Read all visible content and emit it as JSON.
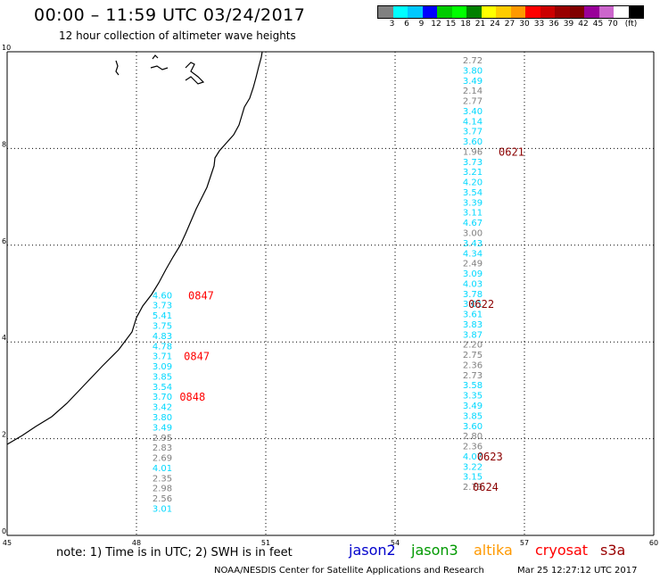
{
  "header": {
    "title": "00:00 – 11:59 UTC 03/24/2017",
    "subtitle": "12 hour collection of altimeter wave heights"
  },
  "colorbar": {
    "colors": [
      "#808080",
      "#00ffff",
      "#00c8ff",
      "#0000ff",
      "#00cc00",
      "#00ff00",
      "#008000",
      "#ffff00",
      "#ffcc00",
      "#ff9900",
      "#ff0000",
      "#cc0000",
      "#990000",
      "#800000",
      "#990099",
      "#cc66cc",
      "#ffffff",
      "#000000"
    ],
    "labels": [
      "3",
      "6",
      "9",
      "12",
      "15",
      "18",
      "21",
      "24",
      "27",
      "30",
      "33",
      "36",
      "39",
      "42",
      "45",
      "70",
      "(ft)"
    ]
  },
  "axes": {
    "x_ticks": [
      "45",
      "48",
      "51",
      "54",
      "57",
      "60"
    ],
    "y_ticks": [
      "0",
      "2",
      "4",
      "6",
      "8",
      "10"
    ],
    "xlim": [
      45,
      60
    ],
    "ylim": [
      0,
      10
    ]
  },
  "tracks": [
    {
      "lon": 48.6,
      "values": [
        {
          "lat": 4.9,
          "v": "4.60",
          "c": "cyan"
        },
        {
          "lat": 4.7,
          "v": "3.73",
          "c": "cyan"
        },
        {
          "lat": 4.48,
          "v": "5.41",
          "c": "cyan"
        },
        {
          "lat": 4.27,
          "v": "3.75",
          "c": "cyan"
        },
        {
          "lat": 4.06,
          "v": "4.83",
          "c": "cyan"
        },
        {
          "lat": 3.85,
          "v": "4.78",
          "c": "cyan"
        },
        {
          "lat": 3.64,
          "v": "3.71",
          "c": "cyan"
        },
        {
          "lat": 3.43,
          "v": "3.09",
          "c": "cyan"
        },
        {
          "lat": 3.22,
          "v": "3.85",
          "c": "cyan"
        },
        {
          "lat": 3.01,
          "v": "3.54",
          "c": "cyan"
        },
        {
          "lat": 2.8,
          "v": "3.70",
          "c": "cyan"
        },
        {
          "lat": 2.59,
          "v": "3.42",
          "c": "cyan"
        },
        {
          "lat": 2.38,
          "v": "3.80",
          "c": "cyan"
        },
        {
          "lat": 2.17,
          "v": "3.49",
          "c": "cyan"
        },
        {
          "lat": 1.96,
          "v": "2.95",
          "c": "gray"
        },
        {
          "lat": 1.75,
          "v": "2.83",
          "c": "gray"
        },
        {
          "lat": 1.54,
          "v": "2.69",
          "c": "gray"
        },
        {
          "lat": 1.33,
          "v": "4.01",
          "c": "cyan"
        },
        {
          "lat": 1.12,
          "v": "2.35",
          "c": "gray"
        },
        {
          "lat": 0.91,
          "v": "2.98",
          "c": "gray"
        },
        {
          "lat": 0.7,
          "v": "2.56",
          "c": "gray"
        },
        {
          "lat": 0.49,
          "v": "3.01",
          "c": "cyan"
        }
      ]
    },
    {
      "lon": 55.8,
      "values": [
        {
          "lat": 9.76,
          "v": "2.72",
          "c": "gray"
        },
        {
          "lat": 9.55,
          "v": "3.80",
          "c": "cyan"
        },
        {
          "lat": 9.34,
          "v": "3.49",
          "c": "cyan"
        },
        {
          "lat": 9.13,
          "v": "2.14",
          "c": "gray"
        },
        {
          "lat": 8.92,
          "v": "2.77",
          "c": "gray"
        },
        {
          "lat": 8.71,
          "v": "3.40",
          "c": "cyan"
        },
        {
          "lat": 8.5,
          "v": "4.14",
          "c": "cyan"
        },
        {
          "lat": 8.29,
          "v": "3.77",
          "c": "cyan"
        },
        {
          "lat": 8.08,
          "v": "3.60",
          "c": "cyan"
        },
        {
          "lat": 7.87,
          "v": "1.96",
          "c": "gray"
        },
        {
          "lat": 7.66,
          "v": "3.73",
          "c": "cyan"
        },
        {
          "lat": 7.45,
          "v": "3.21",
          "c": "cyan"
        },
        {
          "lat": 7.24,
          "v": "4.20",
          "c": "cyan"
        },
        {
          "lat": 7.03,
          "v": "3.54",
          "c": "cyan"
        },
        {
          "lat": 6.82,
          "v": "3.39",
          "c": "cyan"
        },
        {
          "lat": 6.61,
          "v": "3.11",
          "c": "cyan"
        },
        {
          "lat": 6.4,
          "v": "4.67",
          "c": "cyan"
        },
        {
          "lat": 6.19,
          "v": "3.00",
          "c": "gray"
        },
        {
          "lat": 5.98,
          "v": "3.43",
          "c": "cyan"
        },
        {
          "lat": 5.77,
          "v": "4.34",
          "c": "cyan"
        },
        {
          "lat": 5.56,
          "v": "2.49",
          "c": "gray"
        },
        {
          "lat": 5.35,
          "v": "3.09",
          "c": "cyan"
        },
        {
          "lat": 5.14,
          "v": "4.03",
          "c": "cyan"
        },
        {
          "lat": 4.93,
          "v": "3.78",
          "c": "cyan"
        },
        {
          "lat": 4.72,
          "v": "3.01",
          "c": "cyan"
        },
        {
          "lat": 4.51,
          "v": "3.61",
          "c": "cyan"
        },
        {
          "lat": 4.3,
          "v": "3.83",
          "c": "cyan"
        },
        {
          "lat": 4.09,
          "v": "3.87",
          "c": "cyan"
        },
        {
          "lat": 3.88,
          "v": "2.20",
          "c": "gray"
        },
        {
          "lat": 3.67,
          "v": "2.75",
          "c": "gray"
        },
        {
          "lat": 3.46,
          "v": "2.36",
          "c": "gray"
        },
        {
          "lat": 3.25,
          "v": "2.73",
          "c": "gray"
        },
        {
          "lat": 3.04,
          "v": "3.58",
          "c": "cyan"
        },
        {
          "lat": 2.83,
          "v": "3.35",
          "c": "cyan"
        },
        {
          "lat": 2.62,
          "v": "3.49",
          "c": "cyan"
        },
        {
          "lat": 2.41,
          "v": "3.85",
          "c": "cyan"
        },
        {
          "lat": 2.2,
          "v": "3.60",
          "c": "cyan"
        },
        {
          "lat": 1.99,
          "v": "2.80",
          "c": "gray"
        },
        {
          "lat": 1.78,
          "v": "2.36",
          "c": "gray"
        },
        {
          "lat": 1.57,
          "v": "4.07",
          "c": "cyan"
        },
        {
          "lat": 1.36,
          "v": "3.22",
          "c": "cyan"
        },
        {
          "lat": 1.15,
          "v": "3.15",
          "c": "cyan"
        },
        {
          "lat": 0.94,
          "v": "2.73",
          "c": "gray"
        }
      ]
    }
  ],
  "time_labels": [
    {
      "lon": 49.2,
      "lat": 4.9,
      "t": "0847",
      "c": "red"
    },
    {
      "lon": 49.1,
      "lat": 3.64,
      "t": "0847",
      "c": "red"
    },
    {
      "lon": 49.0,
      "lat": 2.8,
      "t": "0848",
      "c": "red"
    },
    {
      "lon": 56.4,
      "lat": 7.87,
      "t": "0621",
      "c": "darkred"
    },
    {
      "lon": 55.7,
      "lat": 4.72,
      "t": "0622",
      "c": "darkred"
    },
    {
      "lon": 55.9,
      "lat": 1.57,
      "t": "0623",
      "c": "darkred"
    },
    {
      "lon": 55.8,
      "lat": 0.94,
      "t": "0624",
      "c": "darkred"
    }
  ],
  "colors": {
    "cyan": "#00d8ff",
    "gray": "#808080",
    "red": "#ff0000",
    "darkred": "#8b0000",
    "grid": "#000000"
  },
  "legend": {
    "note": "note: 1) Time is in UTC; 2) SWH is in feet",
    "satellites": [
      {
        "name": "jason2",
        "color": "#0000cc"
      },
      {
        "name": "jason3",
        "color": "#009900"
      },
      {
        "name": "altika",
        "color": "#ff9900"
      },
      {
        "name": "cryosat",
        "color": "#ff0000"
      },
      {
        "name": "s3a",
        "color": "#990000"
      }
    ]
  },
  "footer": {
    "credit": "NOAA/NESDIS Center for Satellite Applications and Research",
    "timestamp": "Mar 25 12:27:12 UTC 2017"
  }
}
